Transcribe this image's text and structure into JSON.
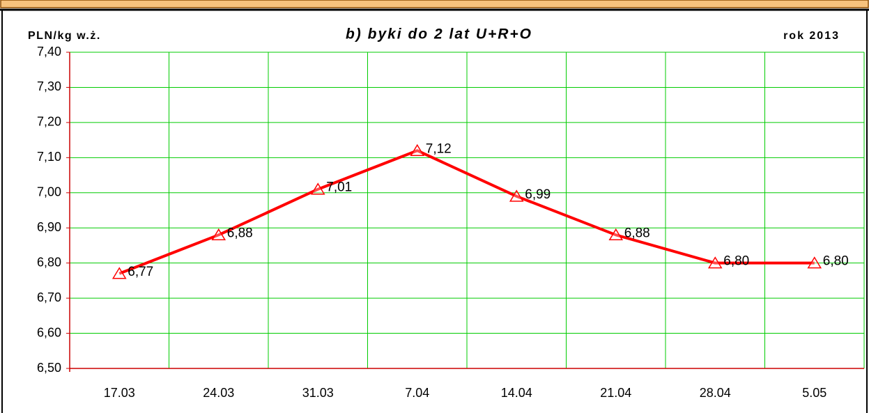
{
  "chart_data": {
    "type": "line",
    "title": "b) byki do 2 lat U+R+O",
    "y_label": "PLN/kg w.ż.",
    "annotation": "rok 2013",
    "categories": [
      "17.03",
      "24.03",
      "31.03",
      "7.04",
      "14.04",
      "21.04",
      "28.04",
      "5.05"
    ],
    "series": [
      {
        "name": "byki do 2 lat U+R+O",
        "color": "#ff0000",
        "values": [
          6.77,
          6.88,
          7.01,
          7.12,
          6.99,
          6.88,
          6.8,
          6.8
        ],
        "value_labels": [
          "6,77",
          "6,88",
          "7,01",
          "7,12",
          "6,99",
          "6,88",
          "6,80",
          "6,80"
        ]
      }
    ],
    "ylim": [
      6.5,
      7.4
    ],
    "yticks": [
      {
        "value": 6.5,
        "label": "6,50"
      },
      {
        "value": 6.6,
        "label": "6,60"
      },
      {
        "value": 6.7,
        "label": "6,70"
      },
      {
        "value": 6.8,
        "label": "6,80"
      },
      {
        "value": 6.9,
        "label": "6,90"
      },
      {
        "value": 7.0,
        "label": "7,00"
      },
      {
        "value": 7.1,
        "label": "7,10"
      },
      {
        "value": 7.2,
        "label": "7,20"
      },
      {
        "value": 7.3,
        "label": "7,30"
      },
      {
        "value": 7.4,
        "label": "7,40"
      }
    ],
    "grid": true,
    "grid_color": "#00cc00",
    "axis_color": "#cc0000"
  }
}
